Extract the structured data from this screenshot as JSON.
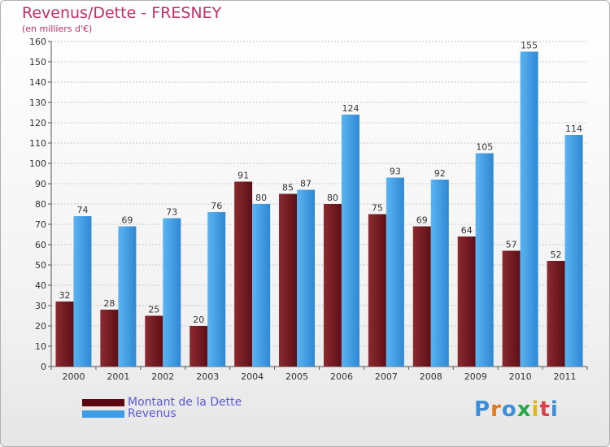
{
  "header": {
    "title": "Revenus/Dette - FRESNEY",
    "subtitle": "(en milliers d'€)"
  },
  "chart_data": {
    "type": "bar",
    "categories": [
      "2000",
      "2001",
      "2002",
      "2003",
      "2004",
      "2005",
      "2006",
      "2007",
      "2008",
      "2009",
      "2010",
      "2011"
    ],
    "series": [
      {
        "name": "Montant de la Dette",
        "color": "#7a1a22",
        "values": [
          32,
          28,
          25,
          20,
          91,
          85,
          80,
          75,
          69,
          64,
          57,
          52
        ]
      },
      {
        "name": "Revenus",
        "color": "#3d9ee6",
        "values": [
          74,
          69,
          73,
          76,
          80,
          87,
          124,
          93,
          92,
          105,
          155,
          114
        ]
      }
    ],
    "ylim": [
      0,
      160
    ],
    "yticks": [
      0,
      10,
      20,
      30,
      40,
      50,
      60,
      70,
      80,
      90,
      100,
      110,
      120,
      130,
      140,
      150,
      160
    ],
    "grid": true,
    "legend_position": "bottom-left"
  },
  "legend": {
    "items": [
      {
        "label": "Montant de la Dette",
        "color": "#5a0a10"
      },
      {
        "label": "Revenus",
        "color": "#3d9ee6"
      }
    ]
  },
  "logo": {
    "letters": [
      "P",
      "r",
      "o",
      "x",
      "i",
      "t",
      "i"
    ],
    "colors": [
      "#3a8fd8",
      "#e07a1a",
      "#3a8fd8",
      "#2aa84a",
      "#e0b81a",
      "#d8404a",
      "#3a8fd8"
    ]
  }
}
